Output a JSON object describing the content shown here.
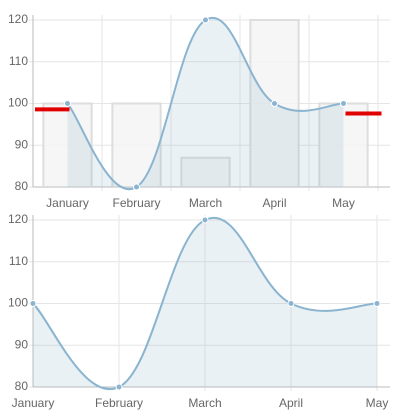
{
  "chart_data": [
    {
      "type": "bar",
      "categories": [
        "January",
        "February",
        "March",
        "April",
        "May"
      ],
      "series": [
        {
          "type": "bar",
          "color": "#dddddd",
          "values": [
            100,
            100,
            87,
            120,
            100
          ]
        },
        {
          "type": "line",
          "color": "#8ab4cf",
          "values": [
            100,
            80,
            120,
            100,
            100
          ]
        },
        {
          "type": "marker",
          "color": "#e00000",
          "values": [
            98.6,
            null,
            null,
            null,
            97.6
          ]
        }
      ],
      "ylim": [
        80,
        120
      ],
      "yticks": [
        80,
        90,
        100,
        110,
        120
      ],
      "grid": true
    },
    {
      "type": "line",
      "categories": [
        "January",
        "February",
        "March",
        "April",
        "May"
      ],
      "series": [
        {
          "type": "line",
          "color": "#8ab4cf",
          "values": [
            100,
            80,
            120,
            100,
            100
          ]
        }
      ],
      "ylim": [
        80,
        120
      ],
      "yticks": [
        80,
        90,
        100,
        110,
        120
      ],
      "grid": true
    }
  ]
}
